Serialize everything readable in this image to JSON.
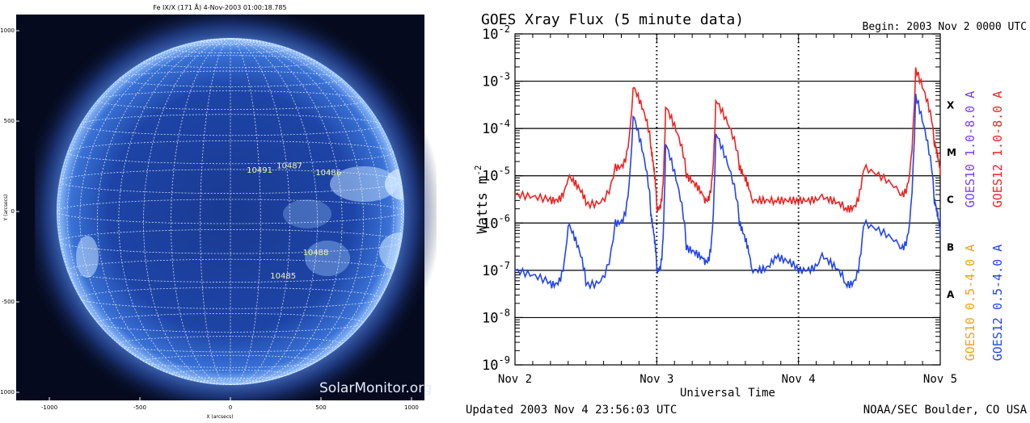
{
  "sun_panel": {
    "title": "Fe IX/X (171 Å)  4-Nov-2003 01:00:18.785",
    "xlabel": "X (arcsecs)",
    "ylabel": "Y (arcsecs)",
    "x_ticks": [
      "-1000",
      "-500",
      "0",
      "500",
      "1000"
    ],
    "y_ticks": [
      "1000",
      "500",
      "0",
      "-500",
      "-1000"
    ],
    "watermark": "SolarMonitor.org",
    "regions": [
      {
        "label": "10491",
        "x": 90,
        "y": 215
      },
      {
        "label": "10487",
        "x": 255,
        "y": 240
      },
      {
        "label": "10486",
        "x": 470,
        "y": 200
      },
      {
        "label": "10488",
        "x": 400,
        "y": -240
      },
      {
        "label": "10485",
        "x": 220,
        "y": -370
      }
    ],
    "colors": {
      "bg": "#050a1e",
      "disk": "#1c3f9a",
      "limb": "#8fc0ff",
      "grid": "#e8eeff"
    }
  },
  "goes_panel": {
    "title": "GOES Xray Flux (5 minute data)",
    "begin": "Begin:  2003 Nov 2 0000 UTC",
    "ylabel": "Watts m",
    "ylabel_sup": "-2",
    "xlabel": "Universal Time",
    "updated": "Updated 2003 Nov  4 23:56:03 UTC",
    "credit": "NOAA/SEC Boulder, CO USA",
    "y_ticks": [
      {
        "base": "10",
        "exp": "-2"
      },
      {
        "base": "10",
        "exp": "-3"
      },
      {
        "base": "10",
        "exp": "-4"
      },
      {
        "base": "10",
        "exp": "-5"
      },
      {
        "base": "10",
        "exp": "-6"
      },
      {
        "base": "10",
        "exp": "-7"
      },
      {
        "base": "10",
        "exp": "-8"
      },
      {
        "base": "10",
        "exp": "-9"
      }
    ],
    "x_ticks": [
      "Nov 2",
      "Nov 3",
      "Nov 4",
      "Nov 5"
    ],
    "class_letters": [
      "X",
      "M",
      "C",
      "B",
      "A"
    ],
    "legend_right": [
      {
        "text": "GOES10 1.0-8.0 A",
        "color": "#7a3cf0"
      },
      {
        "text": "GOES12 1.0-8.0 A",
        "color": "#ee2222"
      }
    ],
    "legend_left": [
      {
        "text": "GOES10 0.5-4.0 A",
        "color": "#f0a020"
      },
      {
        "text": "GOES12 0.5-4.0 A",
        "color": "#2244ee"
      }
    ]
  },
  "chart_data": {
    "type": "line",
    "title": "GOES Xray Flux (5 minute data)",
    "xlabel": "Universal Time",
    "ylabel": "Watts m-2",
    "yscale": "log",
    "ylim": [
      1e-09,
      0.01
    ],
    "xlim": [
      "2003-11-02 00:00",
      "2003-11-05 00:00"
    ],
    "grid": "horizontal lines at class boundaries",
    "series": [
      {
        "name": "GOES12 1.0-8.0 A",
        "color": "#ee2222",
        "x": [
          "2003-11-02 00:00",
          "2003-11-02 06:00",
          "2003-11-02 09:00",
          "2003-11-02 12:00",
          "2003-11-02 17:00",
          "2003-11-02 20:00",
          "2003-11-02 23:00",
          "2003-11-03 00:00",
          "2003-11-03 01:30",
          "2003-11-03 05:00",
          "2003-11-03 08:00",
          "2003-11-03 10:00",
          "2003-11-03 14:00",
          "2003-11-03 16:00",
          "2003-11-03 20:00",
          "2003-11-04 00:00",
          "2003-11-04 04:00",
          "2003-11-04 08:00",
          "2003-11-04 11:00",
          "2003-11-04 17:00",
          "2003-11-04 19:50",
          "2003-11-04 23:00",
          "2003-11-05 00:00"
        ],
        "values": [
          4e-06,
          3e-06,
          1e-05,
          2.5e-06,
          1.5e-05,
          0.0008,
          4e-05,
          2e-06,
          0.0003,
          1e-05,
          3e-06,
          0.0004,
          1.5e-05,
          3e-06,
          3e-06,
          3e-06,
          3.5e-06,
          2e-06,
          1.5e-05,
          4e-06,
          0.0018,
          5e-05,
          1e-05
        ]
      },
      {
        "name": "GOES12 0.5-4.0 A",
        "color": "#2244ee",
        "x": [
          "2003-11-02 00:00",
          "2003-11-02 06:00",
          "2003-11-02 09:00",
          "2003-11-02 12:00",
          "2003-11-02 17:00",
          "2003-11-02 20:00",
          "2003-11-02 23:00",
          "2003-11-03 00:00",
          "2003-11-03 01:30",
          "2003-11-03 05:00",
          "2003-11-03 08:00",
          "2003-11-03 10:00",
          "2003-11-03 14:00",
          "2003-11-03 16:00",
          "2003-11-03 20:00",
          "2003-11-04 00:00",
          "2003-11-04 04:00",
          "2003-11-04 08:00",
          "2003-11-04 11:00",
          "2003-11-04 17:00",
          "2003-11-04 19:50",
          "2003-11-04 23:00",
          "2003-11-05 00:00"
        ],
        "values": [
          1e-07,
          5e-08,
          1e-06,
          5e-08,
          1e-06,
          0.0002,
          1.5e-06,
          1e-07,
          5e-05,
          3e-07,
          1.5e-07,
          8e-05,
          1e-06,
          1e-07,
          2e-07,
          1e-07,
          2e-07,
          5e-08,
          1e-06,
          3e-07,
          0.0005,
          3e-06,
          5e-07
        ]
      }
    ],
    "class_levels": [
      {
        "label": "X",
        "value": 0.0001
      },
      {
        "label": "M",
        "value": 1e-05
      },
      {
        "label": "C",
        "value": 1e-06
      },
      {
        "label": "B",
        "value": 1e-07
      },
      {
        "label": "A",
        "value": 1e-08
      }
    ]
  }
}
